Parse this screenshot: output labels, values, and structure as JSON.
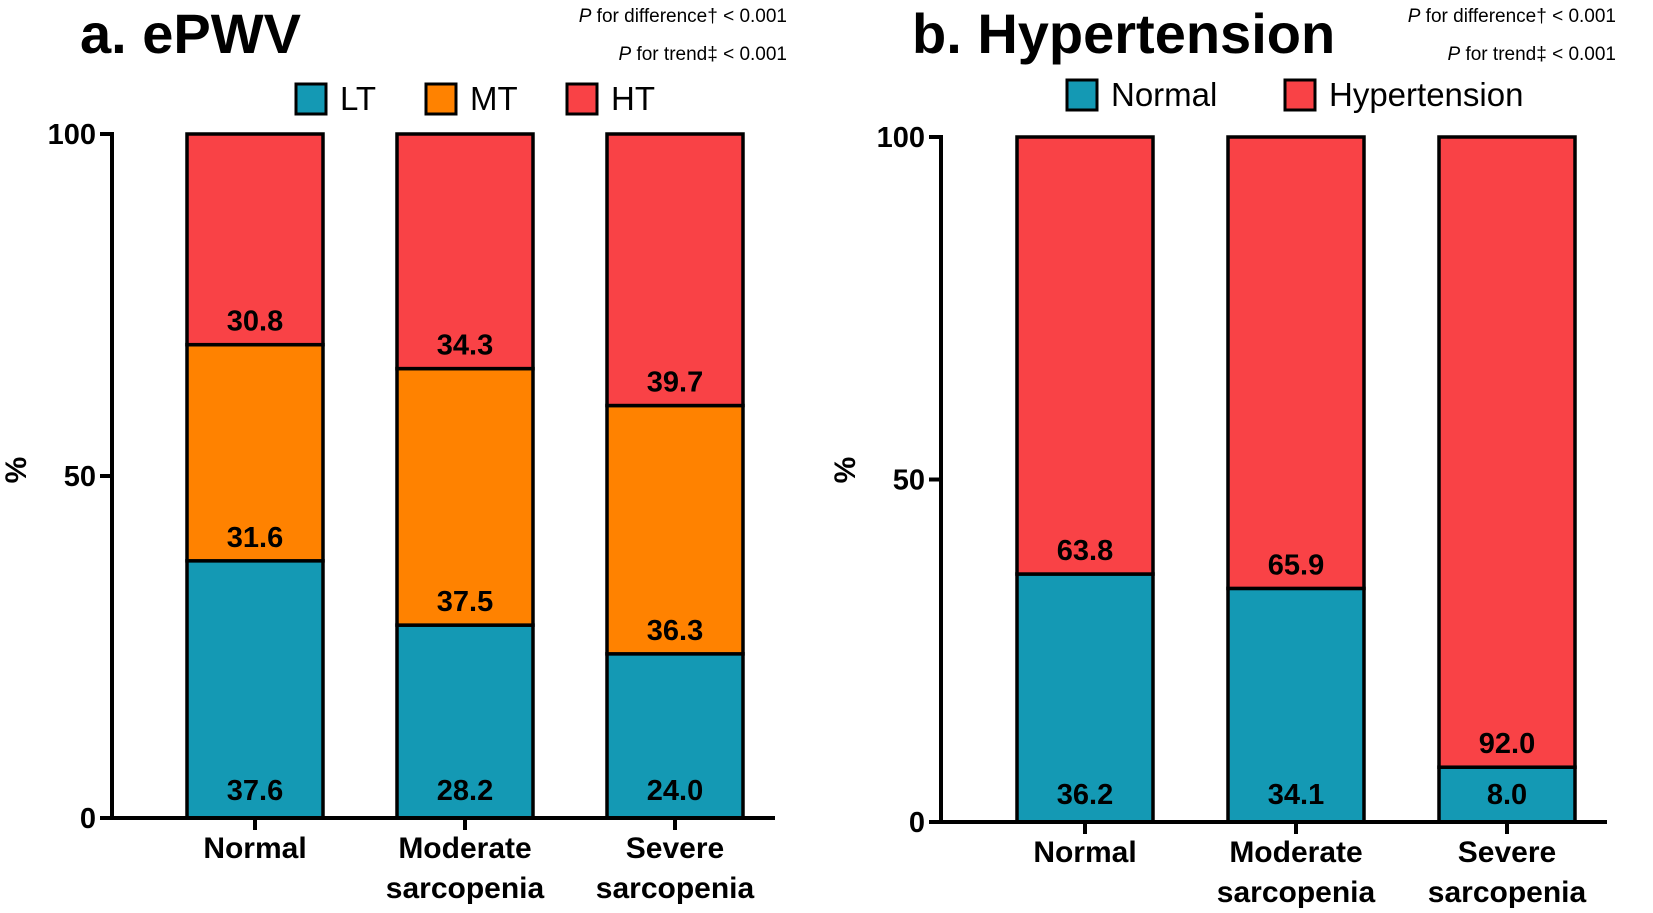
{
  "chart_data": [
    {
      "type": "bar",
      "stacked": true,
      "title": "a. ePWV",
      "p_notes": [
        {
          "italic": "P",
          "text": " for difference† < 0.001"
        },
        {
          "italic": "P",
          "text": " for trend‡ < 0.001"
        }
      ],
      "categories": [
        [
          "Normal"
        ],
        [
          "Moderate",
          "sarcopenia"
        ],
        [
          "Severe",
          "sarcopenia"
        ]
      ],
      "series": [
        {
          "name": "LT",
          "color": "#1499B4",
          "values": [
            37.6,
            28.2,
            24.0
          ]
        },
        {
          "name": "MT",
          "color": "#FF8200",
          "values": [
            31.6,
            37.5,
            36.3
          ]
        },
        {
          "name": "HT",
          "color": "#F94246",
          "values": [
            30.8,
            34.3,
            39.7
          ]
        }
      ],
      "ylabel": "%",
      "ylim": [
        0,
        100
      ],
      "yticks": [
        "0",
        "50",
        "100"
      ],
      "legend_position": "top"
    },
    {
      "type": "bar",
      "stacked": true,
      "title": "b. Hypertension",
      "p_notes": [
        {
          "italic": "P",
          "text": " for difference† < 0.001"
        },
        {
          "italic": "P",
          "text": " for trend‡ < 0.001"
        }
      ],
      "categories": [
        [
          "Normal"
        ],
        [
          "Moderate",
          "sarcopenia"
        ],
        [
          "Severe",
          "sarcopenia"
        ]
      ],
      "series": [
        {
          "name": "Normal",
          "color": "#1499B4",
          "values": [
            36.2,
            34.1,
            8.0
          ]
        },
        {
          "name": "Hypertension",
          "color": "#F94246",
          "values": [
            63.8,
            65.9,
            92.0
          ]
        }
      ],
      "ylabel": "%",
      "ylim": [
        0,
        100
      ],
      "yticks": [
        "0",
        "50",
        "100"
      ],
      "legend_position": "top"
    }
  ]
}
